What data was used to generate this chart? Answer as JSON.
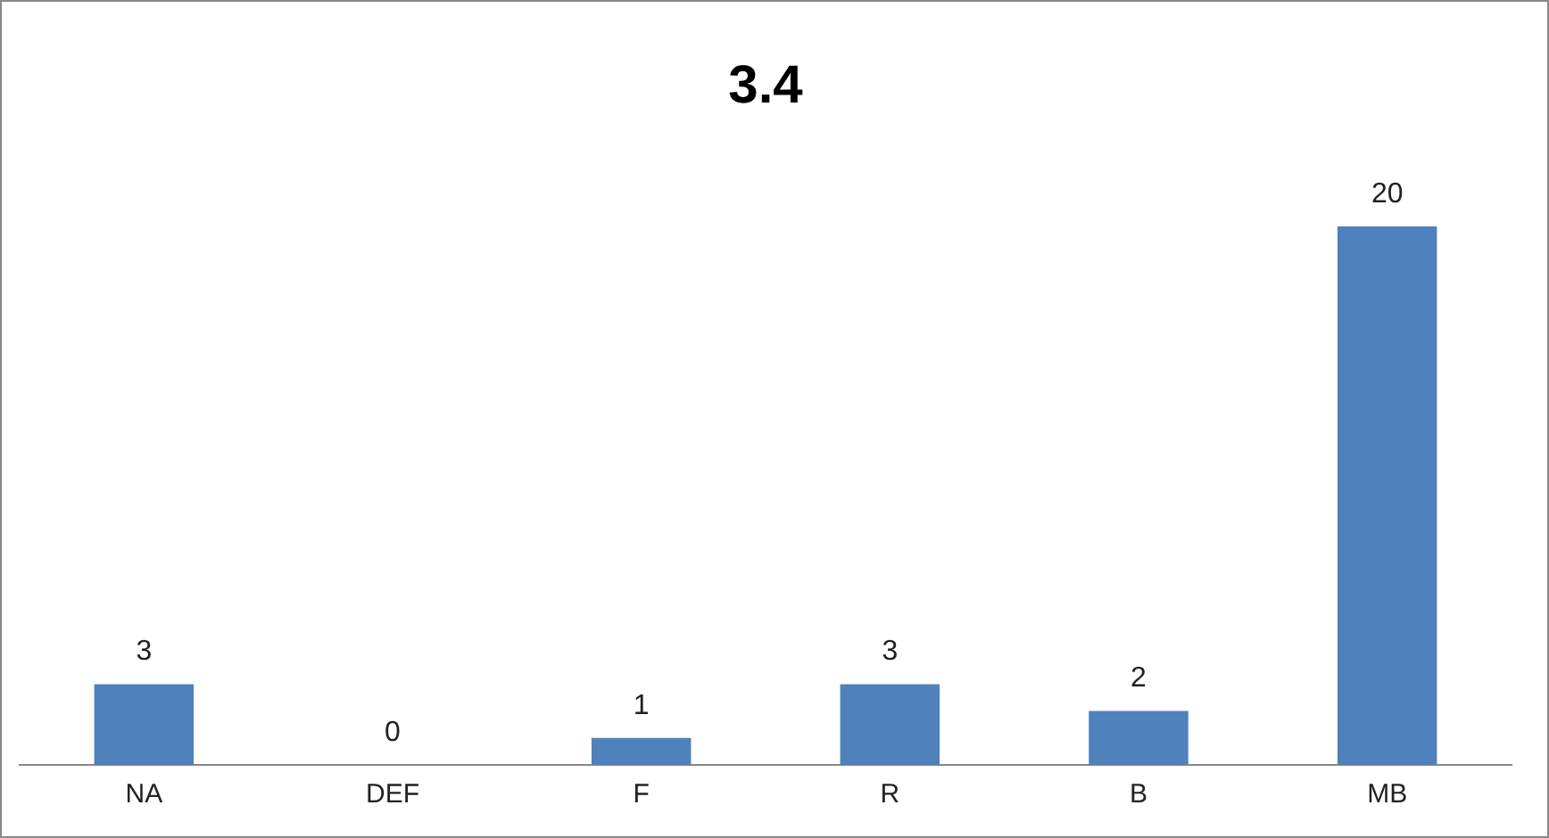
{
  "chart_data": {
    "type": "bar",
    "title": "3.4",
    "categories": [
      "NA",
      "DEF",
      "F",
      "R",
      "B",
      "MB"
    ],
    "values": [
      3,
      0,
      1,
      3,
      2,
      20
    ],
    "color": "#4f81bd",
    "data_labels": true,
    "grid": false,
    "legend": false
  }
}
